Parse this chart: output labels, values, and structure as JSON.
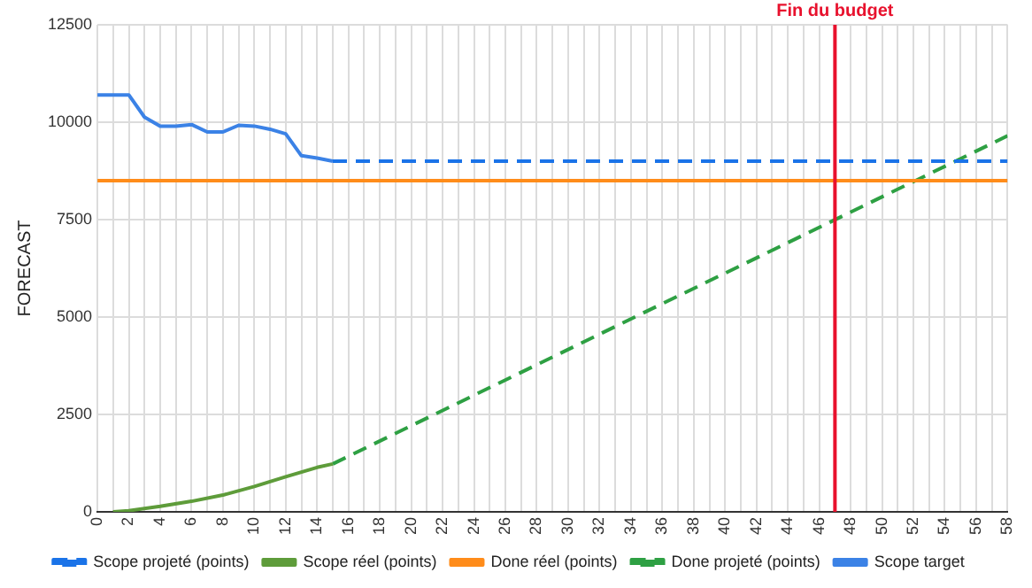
{
  "chart_data": {
    "type": "line",
    "ylabel": "FORECAST",
    "xlim": [
      0,
      58
    ],
    "ylim": [
      0,
      12500
    ],
    "xticks": [
      0,
      {
        "value": 1,
        "label": null
      },
      2,
      {
        "value": 3,
        "label": null
      },
      4,
      {
        "value": 5,
        "label": null
      },
      6,
      {
        "value": 7,
        "label": null
      },
      8,
      {
        "value": 9,
        "label": null
      },
      10,
      {
        "value": 11,
        "label": null
      },
      12,
      {
        "value": 13,
        "label": null
      },
      14,
      {
        "value": 15,
        "label": null
      },
      16,
      {
        "value": 17,
        "label": null
      },
      18,
      {
        "value": 19,
        "label": null
      },
      20,
      {
        "value": 21,
        "label": null
      },
      22,
      {
        "value": 23,
        "label": null
      },
      24,
      {
        "value": 25,
        "label": null
      },
      26,
      {
        "value": 27,
        "label": null
      },
      28,
      {
        "value": 29,
        "label": null
      },
      30,
      {
        "value": 31,
        "label": null
      },
      32,
      {
        "value": 33,
        "label": null
      },
      34,
      {
        "value": 35,
        "label": null
      },
      36,
      {
        "value": 37,
        "label": null
      },
      38,
      {
        "value": 39,
        "label": null
      },
      40,
      {
        "value": 41,
        "label": null
      },
      42,
      {
        "value": 43,
        "label": null
      },
      44,
      {
        "value": 45,
        "label": null
      },
      46,
      {
        "value": 47,
        "label": null
      },
      48,
      {
        "value": 49,
        "label": null
      },
      50,
      {
        "value": 51,
        "label": null
      },
      52,
      {
        "value": 53,
        "label": null
      },
      54,
      {
        "value": 55,
        "label": null
      },
      56,
      {
        "value": 57,
        "label": null
      },
      58
    ],
    "yticks": [
      0,
      2500,
      5000,
      7500,
      10000,
      12500
    ],
    "grid": true,
    "legend": "bottom",
    "marker": "none",
    "series": [
      {
        "name": "Scope projeté (points)",
        "color": "#1a73e8",
        "line_style": "dashed",
        "x": [
          15,
          58
        ],
        "values": [
          9000,
          9000
        ]
      },
      {
        "name": "Scope réel (points)",
        "color": "#5e9c3a",
        "line_style": "solid",
        "x": [
          1,
          2,
          4,
          6,
          8,
          10,
          12,
          14,
          15
        ],
        "values": [
          0,
          30,
          140,
          270,
          430,
          650,
          900,
          1140,
          1230
        ]
      },
      {
        "name": "Done réel (points)",
        "color": "#ff8c1a",
        "line_style": "solid",
        "x": [
          0,
          58
        ],
        "values": [
          8500,
          8500
        ]
      },
      {
        "name": "Done projeté (points)",
        "color": "#2ea043",
        "line_style": "dashed",
        "x": [
          15,
          58
        ],
        "values": [
          1230,
          9650
        ]
      },
      {
        "name": "Scope target",
        "color": "#3b82e6",
        "line_style": "solid",
        "x": [
          0,
          1,
          2,
          3,
          4,
          5,
          6,
          7,
          8,
          9,
          10,
          11,
          12,
          13,
          14,
          15
        ],
        "values": [
          10700,
          10700,
          10700,
          10130,
          9900,
          9900,
          9940,
          9750,
          9750,
          9920,
          9900,
          9820,
          9700,
          9140,
          9080,
          9000
        ]
      }
    ],
    "ref_lines": [
      {
        "axis": "x",
        "value": 47,
        "label": "Fin du budget",
        "color": "#e8112d"
      }
    ]
  }
}
